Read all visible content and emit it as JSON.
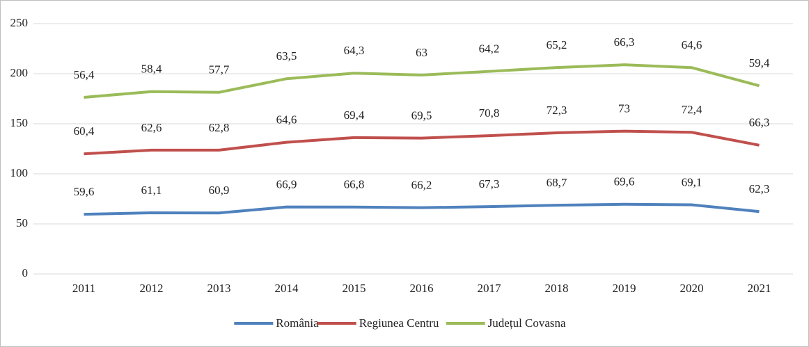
{
  "chart_data": {
    "type": "line",
    "stacked": true,
    "categories": [
      "2011",
      "2012",
      "2013",
      "2014",
      "2015",
      "2016",
      "2017",
      "2018",
      "2019",
      "2020",
      "2021"
    ],
    "series": [
      {
        "name": "România",
        "color": "#4f81bd",
        "values": [
          59.6,
          61.1,
          60.9,
          66.9,
          66.8,
          66.2,
          67.3,
          68.7,
          69.6,
          69.1,
          62.3
        ],
        "value_labels": [
          "59,6",
          "61,1",
          "60,9",
          "66,9",
          "66,8",
          "66,2",
          "67,3",
          "68,7",
          "69,6",
          "69,1",
          "62,3"
        ]
      },
      {
        "name": "Regiunea Centru",
        "color": "#c0504d",
        "values": [
          60.4,
          62.6,
          62.8,
          64.6,
          69.4,
          69.5,
          70.8,
          72.3,
          73,
          72.4,
          66.3
        ],
        "value_labels": [
          "60,4",
          "62,6",
          "62,8",
          "64,6",
          "69,4",
          "69,5",
          "70,8",
          "72,3",
          "73",
          "72,4",
          "66,3"
        ]
      },
      {
        "name": "Județul Covasna",
        "color": "#9bbb59",
        "values": [
          56.4,
          58.4,
          57.7,
          63.5,
          64.3,
          63,
          64.2,
          65.2,
          66.3,
          64.6,
          59.4
        ],
        "value_labels": [
          "56,4",
          "58,4",
          "57,7",
          "63,5",
          "64,3",
          "63",
          "64,2",
          "65,2",
          "66,3",
          "64,6",
          "59,4"
        ]
      }
    ],
    "ylim": [
      0,
      250
    ],
    "yticks": [
      0,
      50,
      100,
      150,
      200,
      250
    ],
    "grid": true,
    "legend": "bottom"
  }
}
